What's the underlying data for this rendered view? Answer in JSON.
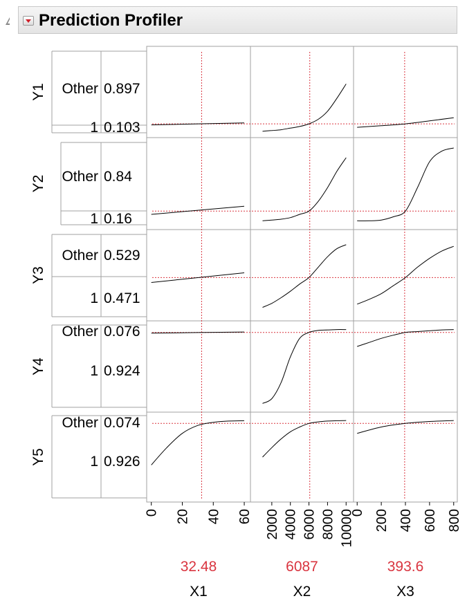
{
  "header": {
    "title": "Prediction Profiler"
  },
  "chart_data": {
    "type": "line",
    "title": "Prediction Profiler",
    "factors": [
      {
        "name": "X1",
        "current": 32.48,
        "current_label": "32.48",
        "range": [
          -3,
          64
        ],
        "ticks": [
          "0",
          "20",
          "40",
          "60"
        ],
        "tick_values": [
          0,
          20,
          40,
          60
        ]
      },
      {
        "name": "X2",
        "current": 6087,
        "current_label": "6087",
        "range": [
          -300,
          10800
        ],
        "ticks": [
          "2000",
          "4000",
          "6000",
          "8000",
          "10000"
        ],
        "tick_values": [
          2000,
          4000,
          6000,
          8000,
          10000
        ]
      },
      {
        "name": "X3",
        "current": 393.6,
        "current_label": "393.6",
        "range": [
          -30,
          830
        ],
        "ticks": [
          "0",
          "200",
          "400",
          "600",
          "800"
        ],
        "tick_values": [
          0,
          200,
          400,
          600,
          800
        ]
      }
    ],
    "responses": [
      {
        "name": "Y1",
        "levels": [
          {
            "level": "Other",
            "value": "0.897"
          },
          {
            "level": "1",
            "value": "0.103"
          }
        ],
        "curves": [
          {
            "factor": "X1",
            "x": [
              0,
              60
            ],
            "y": [
              0.09,
              0.115
            ]
          },
          {
            "factor": "X2",
            "x": [
              1000,
              2000,
              3000,
              4000,
              5000,
              6000,
              7000,
              8000,
              9000,
              10000
            ],
            "y": [
              0.01,
              0.02,
              0.03,
              0.05,
              0.07,
              0.103,
              0.16,
              0.26,
              0.42,
              0.6
            ]
          },
          {
            "factor": "X3",
            "x": [
              0,
              200,
              400,
              600,
              800
            ],
            "y": [
              0.06,
              0.08,
              0.103,
              0.14,
              0.18
            ]
          }
        ]
      },
      {
        "name": "Y2",
        "levels": [
          {
            "level": "Other",
            "value": "0.84"
          },
          {
            "level": "1",
            "value": "0.16"
          }
        ],
        "curves": [
          {
            "factor": "X1",
            "x": [
              0,
              60
            ],
            "y": [
              0.12,
              0.22
            ]
          },
          {
            "factor": "X2",
            "x": [
              1000,
              2000,
              3000,
              4000,
              5000,
              6000,
              7000,
              8000,
              9000,
              10000
            ],
            "y": [
              0.04,
              0.05,
              0.06,
              0.08,
              0.12,
              0.16,
              0.28,
              0.45,
              0.65,
              0.82
            ]
          },
          {
            "factor": "X3",
            "x": [
              0,
              100,
              200,
              300,
              400,
              500,
              600,
              700,
              800
            ],
            "y": [
              0.04,
              0.04,
              0.05,
              0.09,
              0.16,
              0.45,
              0.77,
              0.9,
              0.94
            ]
          }
        ]
      },
      {
        "name": "Y3",
        "levels": [
          {
            "level": "Other",
            "value": "0.529"
          },
          {
            "level": "1",
            "value": "0.471"
          }
        ],
        "curves": [
          {
            "factor": "X1",
            "x": [
              0,
              60
            ],
            "y": [
              0.41,
              0.53
            ]
          },
          {
            "factor": "X2",
            "x": [
              1000,
              2000,
              3000,
              4000,
              5000,
              6000,
              7000,
              8000,
              9000,
              10000
            ],
            "y": [
              0.1,
              0.15,
              0.22,
              0.3,
              0.39,
              0.471,
              0.6,
              0.73,
              0.83,
              0.88
            ]
          },
          {
            "factor": "X3",
            "x": [
              0,
              100,
              200,
              300,
              400,
              500,
              600,
              700,
              800
            ],
            "y": [
              0.14,
              0.2,
              0.27,
              0.37,
              0.471,
              0.6,
              0.71,
              0.8,
              0.86
            ]
          }
        ]
      },
      {
        "name": "Y4",
        "levels": [
          {
            "level": "Other",
            "value": "0.076"
          },
          {
            "level": "1",
            "value": "0.924"
          }
        ],
        "curves": [
          {
            "factor": "X1",
            "x": [
              0,
              60
            ],
            "y": [
              0.915,
              0.93
            ]
          },
          {
            "factor": "X2",
            "x": [
              1000,
              2000,
              3000,
              4000,
              5000,
              6000,
              7000,
              8000,
              9000,
              10000
            ],
            "y": [
              0.04,
              0.1,
              0.3,
              0.62,
              0.85,
              0.924,
              0.95,
              0.955,
              0.96,
              0.96
            ]
          },
          {
            "factor": "X3",
            "x": [
              0,
              100,
              200,
              300,
              400,
              500,
              600,
              700,
              800
            ],
            "y": [
              0.75,
              0.8,
              0.85,
              0.89,
              0.924,
              0.935,
              0.945,
              0.955,
              0.96
            ]
          }
        ]
      },
      {
        "name": "Y5",
        "levels": [
          {
            "level": "Other",
            "value": "0.074"
          },
          {
            "level": "1",
            "value": "0.926"
          }
        ],
        "curves": [
          {
            "factor": "X1",
            "x": [
              0,
              10,
              20,
              30,
              40,
              50,
              60
            ],
            "y": [
              0.4,
              0.62,
              0.8,
              0.9,
              0.94,
              0.955,
              0.96
            ]
          },
          {
            "factor": "X2",
            "x": [
              1000,
              2000,
              3000,
              4000,
              5000,
              6000,
              7000,
              8000,
              9000,
              10000
            ],
            "y": [
              0.5,
              0.62,
              0.73,
              0.82,
              0.88,
              0.926,
              0.945,
              0.955,
              0.96,
              0.962
            ]
          },
          {
            "factor": "X3",
            "x": [
              0,
              200,
              400,
              600,
              800
            ],
            "y": [
              0.8,
              0.88,
              0.926,
              0.95,
              0.962
            ]
          }
        ]
      }
    ]
  }
}
